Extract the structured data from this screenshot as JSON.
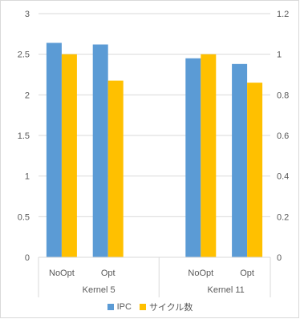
{
  "chart_data": {
    "type": "bar",
    "title": "",
    "groups": [
      {
        "label": "Kernel 5",
        "categories": [
          "NoOpt",
          "Opt"
        ]
      },
      {
        "label": "Kernel 11",
        "categories": [
          "NoOpt",
          "Opt"
        ]
      }
    ],
    "categories": [
      "NoOpt",
      "Opt",
      "NoOpt",
      "Opt"
    ],
    "series": [
      {
        "name": "IPC",
        "axis": "left",
        "color": "#5b9bd5",
        "values": [
          2.64,
          2.62,
          2.45,
          2.38
        ]
      },
      {
        "name": "サイクル数",
        "axis": "right",
        "color": "#ffc000",
        "values": [
          1.0,
          0.87,
          1.0,
          0.86
        ]
      }
    ],
    "y_left": {
      "lim": [
        0,
        3
      ],
      "ticks": [
        "0",
        "0.5",
        "1",
        "1.5",
        "2",
        "2.5",
        "3"
      ]
    },
    "y_right": {
      "lim": [
        0,
        1.2
      ],
      "ticks": [
        "0",
        "0.2",
        "0.4",
        "0.6",
        "0.8",
        "1",
        "1.2"
      ]
    },
    "grid": true,
    "legend_position": "bottom"
  }
}
